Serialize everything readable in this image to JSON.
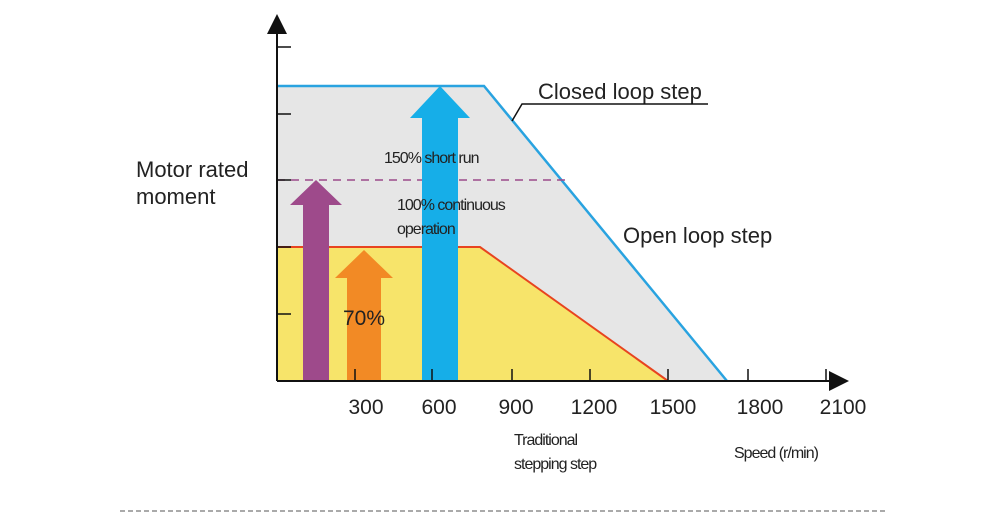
{
  "y_label": {
    "line1": "Motor rated",
    "line2": "moment"
  },
  "closed_loop_label": "Closed loop step",
  "open_loop_label": "Open loop step",
  "short_run_label": "150% short run",
  "continuous_label": {
    "line1": "100% continuous",
    "line2": "operation"
  },
  "percent_label": "70%",
  "x_ticks": [
    "300",
    "600",
    "900",
    "1200",
    "1500",
    "1800",
    "2100"
  ],
  "traditional_label": {
    "line1": "Traditional",
    "line2": "stepping step"
  },
  "x_axis_label": "Speed (r/min)"
}
